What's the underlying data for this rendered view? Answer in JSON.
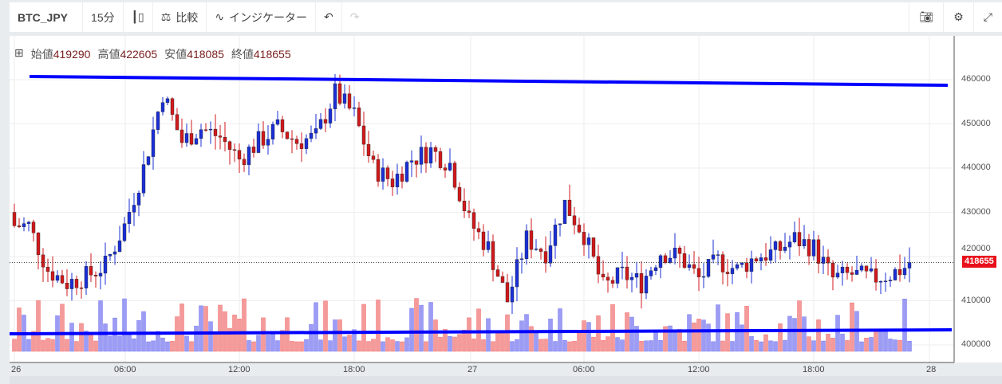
{
  "toolbar": {
    "symbol": "BTC_JPY",
    "interval": "15分",
    "compare": "比較",
    "indicators": "インジケーター"
  },
  "legend": {
    "open_label": "始値",
    "open": "419290",
    "high_label": "高値",
    "high": "422605",
    "low_label": "安値",
    "low": "418085",
    "close_label": "終値",
    "close": "418655"
  },
  "price_axis": [
    "460000",
    "450000",
    "440000",
    "430000",
    "420000",
    "410000",
    "400000"
  ],
  "current_price": "418655",
  "time_axis": [
    "26",
    "06:00",
    "12:00",
    "18:00",
    "27",
    "06:00",
    "12:00",
    "18:00",
    "28"
  ],
  "colors": {
    "up": "#1a2fd6",
    "down": "#d0191c",
    "trendline": "#0000ff",
    "vol_up": "#9c9cf5",
    "vol_down": "#f59a9a"
  },
  "chart_data": {
    "type": "candlestick",
    "interval_minutes": 15,
    "hourly_close": [
      427000,
      417000,
      414000,
      415500,
      418000,
      427000,
      440000,
      457000,
      446000,
      449000,
      447000,
      442000,
      446000,
      449000,
      446000,
      447000,
      457000,
      452000,
      440000,
      437000,
      442000,
      444000,
      441000,
      428000,
      422000,
      410000,
      424000,
      421000,
      432000,
      425000,
      413000,
      416000,
      414000,
      421000,
      420000,
      415000,
      419000,
      417000,
      420000,
      421000,
      424000,
      422000,
      415000,
      416000,
      415000,
      416000,
      418000,
      418655
    ],
    "ylim": [
      396000,
      468000
    ]
  }
}
